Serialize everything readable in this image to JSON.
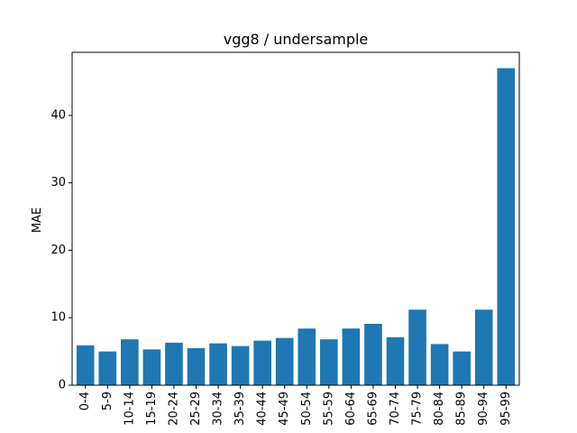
{
  "chart_data": {
    "type": "bar",
    "title": "vgg8 / undersample",
    "xlabel": "",
    "ylabel": "MAE",
    "categories": [
      "0-4",
      "5-9",
      "10-14",
      "15-19",
      "20-24",
      "25-29",
      "30-34",
      "35-39",
      "40-44",
      "45-49",
      "50-54",
      "55-59",
      "60-64",
      "65-69",
      "70-74",
      "75-79",
      "80-84",
      "85-89",
      "90-94",
      "95-99"
    ],
    "values": [
      5.9,
      5.0,
      6.8,
      5.3,
      6.3,
      5.5,
      6.2,
      5.8,
      6.6,
      7.0,
      8.4,
      6.8,
      8.4,
      9.1,
      7.1,
      11.2,
      6.1,
      5.0,
      11.2,
      47.0
    ],
    "ylim": [
      0,
      49.35
    ],
    "yticks": [
      0,
      10,
      20,
      30,
      40
    ],
    "bar_color": "#1f77b4",
    "grid": false,
    "legend": "none"
  }
}
